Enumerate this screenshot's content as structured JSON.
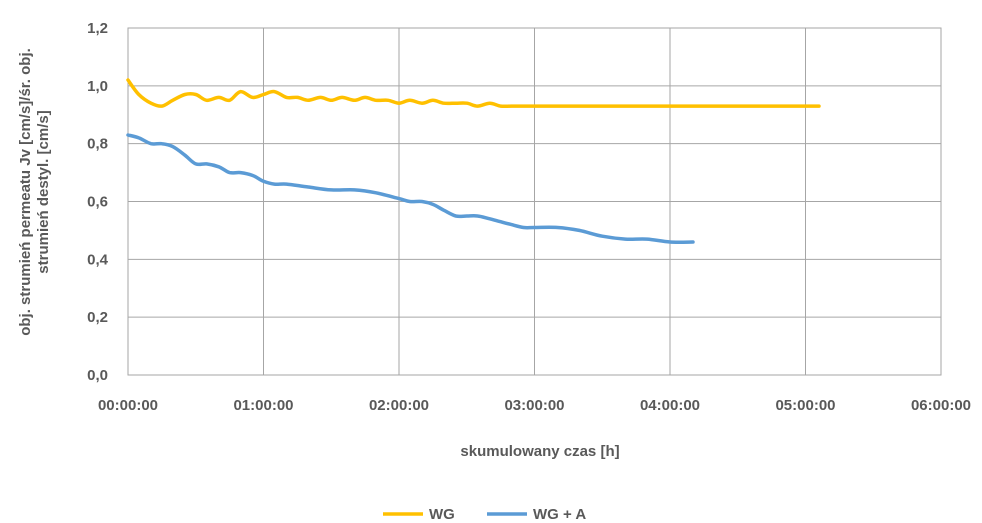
{
  "chart_data": {
    "type": "line",
    "xlabel": "skumulowany czas [h]",
    "ylabel_line1": "obj. strumień permeatu Jv [cm/s]/śr. obj.",
    "ylabel_line2": "strumień destyl. [cm/s]",
    "x_unit": "hours",
    "xlim": [
      0,
      6
    ],
    "ylim": [
      0,
      1.2
    ],
    "x_tick_labels": [
      "00:00:00",
      "01:00:00",
      "02:00:00",
      "03:00:00",
      "04:00:00",
      "05:00:00",
      "06:00:00"
    ],
    "x_tick_values": [
      0,
      1,
      2,
      3,
      4,
      5,
      6
    ],
    "y_tick_labels": [
      "0,0",
      "0,2",
      "0,4",
      "0,6",
      "0,8",
      "1,0",
      "1,2"
    ],
    "y_tick_values": [
      0,
      0.2,
      0.4,
      0.6,
      0.8,
      1.0,
      1.2
    ],
    "grid": true,
    "legend_position": "bottom",
    "series": [
      {
        "name": "WG",
        "color": "#FFC000",
        "x": [
          0.0,
          0.08,
          0.17,
          0.25,
          0.33,
          0.42,
          0.5,
          0.58,
          0.67,
          0.75,
          0.83,
          0.92,
          1.0,
          1.08,
          1.17,
          1.25,
          1.33,
          1.42,
          1.5,
          1.58,
          1.67,
          1.75,
          1.83,
          1.92,
          2.0,
          2.08,
          2.17,
          2.25,
          2.33,
          2.42,
          2.5,
          2.58,
          2.67,
          2.75,
          2.83,
          2.92,
          3.0,
          3.17,
          3.33,
          3.5,
          3.67,
          3.83,
          4.0,
          4.17,
          4.33,
          4.5,
          4.67,
          4.83,
          5.0,
          5.1
        ],
        "y": [
          1.02,
          0.97,
          0.94,
          0.93,
          0.95,
          0.97,
          0.97,
          0.95,
          0.96,
          0.95,
          0.98,
          0.96,
          0.97,
          0.98,
          0.96,
          0.96,
          0.95,
          0.96,
          0.95,
          0.96,
          0.95,
          0.96,
          0.95,
          0.95,
          0.94,
          0.95,
          0.94,
          0.95,
          0.94,
          0.94,
          0.94,
          0.93,
          0.94,
          0.93,
          0.93,
          0.93,
          0.93,
          0.93,
          0.93,
          0.93,
          0.93,
          0.93,
          0.93,
          0.93,
          0.93,
          0.93,
          0.93,
          0.93,
          0.93,
          0.93
        ]
      },
      {
        "name": "WG + A",
        "color": "#5B9BD5",
        "x": [
          0.0,
          0.08,
          0.17,
          0.25,
          0.33,
          0.42,
          0.5,
          0.58,
          0.67,
          0.75,
          0.83,
          0.92,
          1.0,
          1.08,
          1.17,
          1.33,
          1.5,
          1.67,
          1.83,
          2.0,
          2.08,
          2.17,
          2.25,
          2.33,
          2.42,
          2.5,
          2.58,
          2.67,
          2.75,
          2.83,
          2.92,
          3.0,
          3.17,
          3.33,
          3.5,
          3.67,
          3.83,
          4.0,
          4.17
        ],
        "y": [
          0.83,
          0.82,
          0.8,
          0.8,
          0.79,
          0.76,
          0.73,
          0.73,
          0.72,
          0.7,
          0.7,
          0.69,
          0.67,
          0.66,
          0.66,
          0.65,
          0.64,
          0.64,
          0.63,
          0.61,
          0.6,
          0.6,
          0.59,
          0.57,
          0.55,
          0.55,
          0.55,
          0.54,
          0.53,
          0.52,
          0.51,
          0.51,
          0.51,
          0.5,
          0.48,
          0.47,
          0.47,
          0.46,
          0.46
        ]
      }
    ]
  }
}
